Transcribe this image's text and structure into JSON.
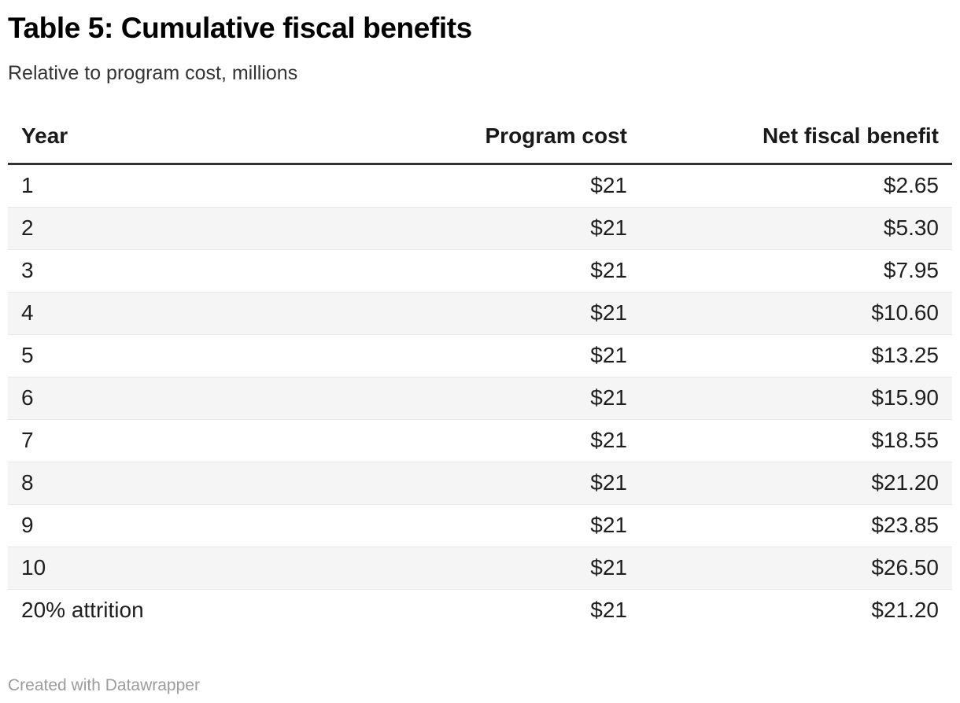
{
  "header": {
    "title": "Table 5: Cumulative fiscal benefits",
    "subtitle": "Relative to program cost, millions"
  },
  "chart_data": {
    "type": "table",
    "columns": [
      "Year",
      "Program cost",
      "Net fiscal benefit"
    ],
    "rows": [
      {
        "year": "1",
        "program_cost": "$21",
        "net_fiscal_benefit": "$2.65"
      },
      {
        "year": "2",
        "program_cost": "$21",
        "net_fiscal_benefit": "$5.30"
      },
      {
        "year": "3",
        "program_cost": "$21",
        "net_fiscal_benefit": "$7.95"
      },
      {
        "year": "4",
        "program_cost": "$21",
        "net_fiscal_benefit": "$10.60"
      },
      {
        "year": "5",
        "program_cost": "$21",
        "net_fiscal_benefit": "$13.25"
      },
      {
        "year": "6",
        "program_cost": "$21",
        "net_fiscal_benefit": "$15.90"
      },
      {
        "year": "7",
        "program_cost": "$21",
        "net_fiscal_benefit": "$18.55"
      },
      {
        "year": "8",
        "program_cost": "$21",
        "net_fiscal_benefit": "$21.20"
      },
      {
        "year": "9",
        "program_cost": "$21",
        "net_fiscal_benefit": "$23.85"
      },
      {
        "year": "10",
        "program_cost": "$21",
        "net_fiscal_benefit": "$26.50"
      },
      {
        "year": "20% attrition",
        "program_cost": "$21",
        "net_fiscal_benefit": "$21.20"
      }
    ]
  },
  "footer": {
    "credit": "Created with Datawrapper"
  },
  "colors": {
    "header_rule": "#333333",
    "row_divider": "#e8e8e8",
    "zebra_stripe": "#f5f5f5",
    "footer_text": "#9c9c9c",
    "text": "#1d1d1d"
  }
}
